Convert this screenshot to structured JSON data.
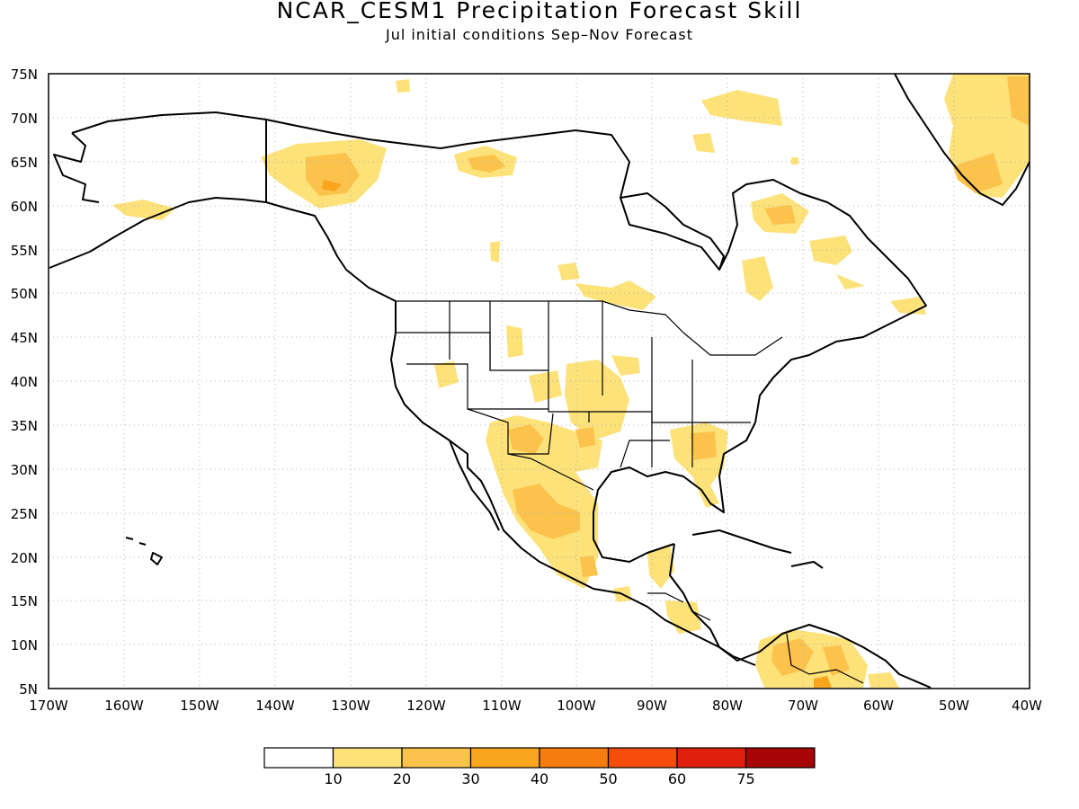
{
  "title": "NCAR_CESM1 Precipitation Forecast Skill",
  "subtitle": "Jul initial conditions   Sep–Nov Forecast",
  "map": {
    "projection": "lat-lon",
    "lon_range": [
      -170,
      -40
    ],
    "lat_range": [
      5,
      75
    ],
    "grid": "dotted",
    "lat_labels": [
      "75N",
      "70N",
      "65N",
      "60N",
      "55N",
      "50N",
      "45N",
      "40N",
      "35N",
      "30N",
      "25N",
      "20N",
      "15N",
      "10N",
      "5N"
    ],
    "lon_labels": [
      "170W",
      "160W",
      "150W",
      "140W",
      "130W",
      "120W",
      "110W",
      "100W",
      "90W",
      "80W",
      "70W",
      "60W",
      "50W",
      "40W"
    ]
  },
  "colorbar": {
    "labels": [
      "10",
      "20",
      "30",
      "40",
      "50",
      "60",
      "75"
    ],
    "colors": [
      "#ffffff",
      "#fde27a",
      "#fbc24c",
      "#f9a51e",
      "#f77c10",
      "#f64d0c",
      "#e0200c",
      "#a60606"
    ]
  }
}
